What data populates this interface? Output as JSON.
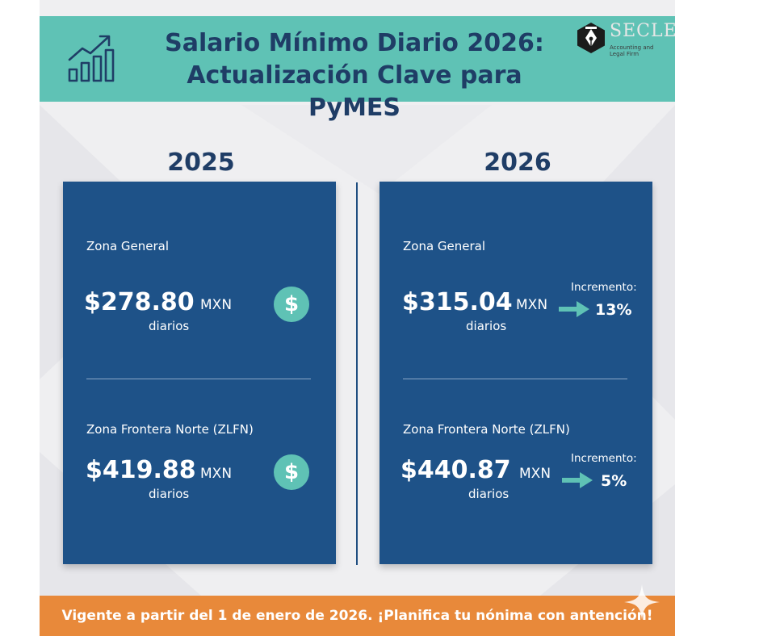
{
  "header": {
    "title_line1": "Salario Mínimo Diario 2026:",
    "title_line2": "Actualización Clave para PyMES",
    "logo_name": "SECLEC",
    "logo_tagline": "Accounting and Legal Firm"
  },
  "icons": {
    "chart": "growth-chart-icon",
    "dollar": "dollar-sign-icon",
    "arrow": "right-arrow-icon",
    "sparkle": "sparkle-icon"
  },
  "colors": {
    "header_bg": "#5fc2b5",
    "title_text": "#1f3d66",
    "panel_bg": "#1e5288",
    "accent": "#5fc2b5",
    "footer_bg": "#e8893a"
  },
  "columns": [
    {
      "year": "2025",
      "zones": [
        {
          "label": "Zona General",
          "amount": "$278.80",
          "currency": "MXN",
          "per_day": "diarios"
        },
        {
          "label": "Zona Frontera Norte (ZLFN)",
          "amount": "$419.88",
          "currency": "MXN",
          "per_day": "diarios"
        }
      ],
      "dollar_symbol": "$"
    },
    {
      "year": "2026",
      "zones": [
        {
          "label": "Zona General",
          "amount": "$315.04",
          "currency": "MXN",
          "per_day": "diarios",
          "increment_label": "Incremento:",
          "increment_value": "13%"
        },
        {
          "label": "Zona Frontera Norte (ZLFN)",
          "amount": "$440.87",
          "currency": "MXN",
          "per_day": "diarios",
          "increment_label": "Incremento:",
          "increment_value": "5%"
        }
      ]
    }
  ],
  "footer": {
    "text": "Vigente a partir del 1 de enero de 2026. ¡Planifica tu nónima con antención!"
  }
}
